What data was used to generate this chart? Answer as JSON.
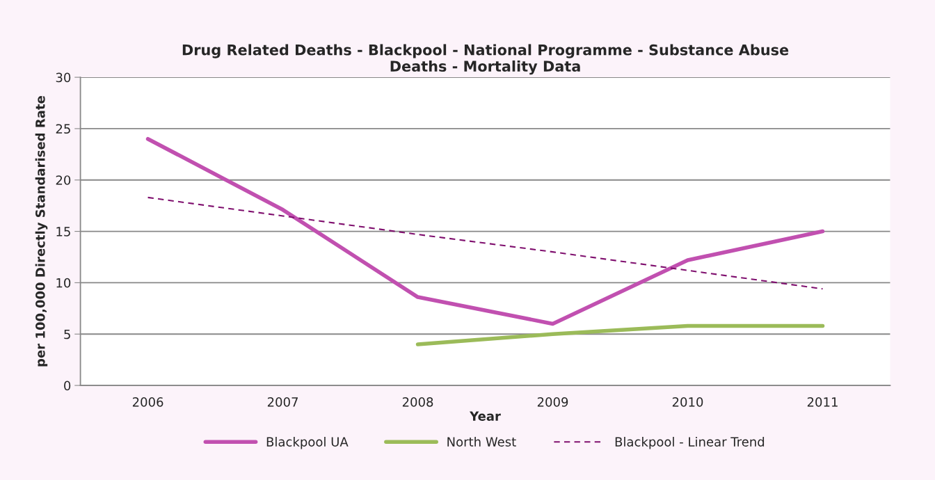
{
  "chart_data": {
    "type": "line",
    "title": "Drug Related Deaths - Blackpool - National Programme - Substance Abuse\nDeaths - Mortality Data",
    "xlabel": "Year",
    "ylabel": "per 100,000 Directly Standarised Rate",
    "categories": [
      "2006",
      "2007",
      "2008",
      "2009",
      "2010",
      "2011"
    ],
    "series": [
      {
        "name": "Blackpool UA",
        "color": "#c150b0",
        "values": [
          24.0,
          17.1,
          8.6,
          6.0,
          12.2,
          15.0
        ]
      },
      {
        "name": "North West",
        "color": "#9bbb59",
        "values": [
          null,
          null,
          4.0,
          5.0,
          5.8,
          5.8
        ]
      },
      {
        "name": "Blackpool - Linear Trend",
        "color": "#7f0f6e",
        "line_style": "dashed",
        "values": [
          18.3,
          16.5,
          14.7,
          13.0,
          11.2,
          9.4
        ]
      }
    ],
    "ylim": [
      0,
      30
    ],
    "yticks": [
      0,
      5,
      10,
      15,
      20,
      25,
      30
    ],
    "grid": "y",
    "legend": "bottom",
    "marker": "none",
    "line_style": "solid"
  }
}
